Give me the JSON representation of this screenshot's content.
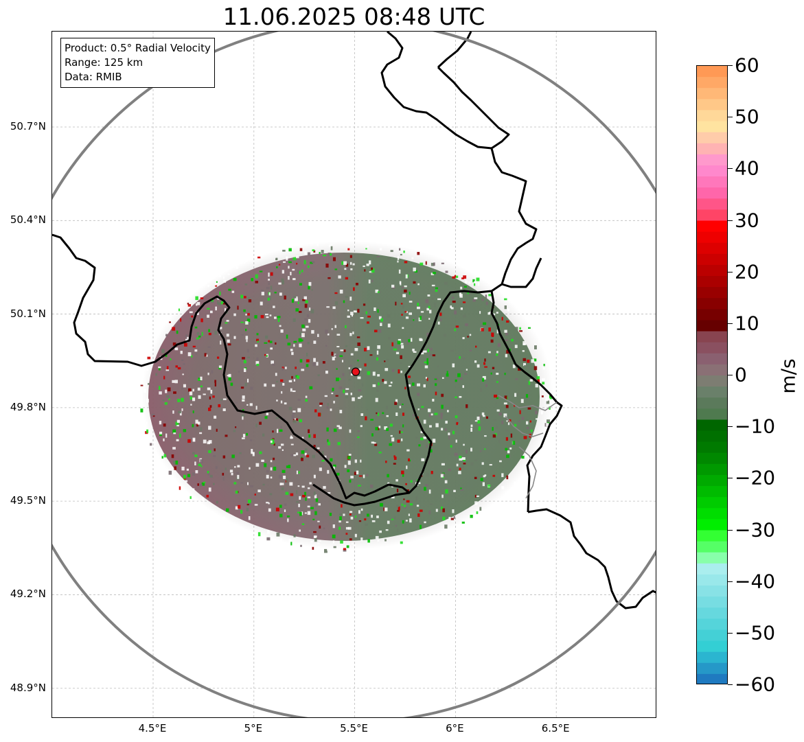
{
  "title": "11.06.2025 08:48 UTC",
  "info": {
    "product": "Product: 0.5° Radial Velocity",
    "range": "Range: 125 km",
    "source": "Data: RMIB"
  },
  "axes": {
    "latitude_ticks": [
      {
        "value": 50.7,
        "label": "50.7°N"
      },
      {
        "value": 50.4,
        "label": "50.4°N"
      },
      {
        "value": 50.1,
        "label": "50.1°N"
      },
      {
        "value": 49.8,
        "label": "49.8°N"
      },
      {
        "value": 49.5,
        "label": "49.5°N"
      },
      {
        "value": 49.2,
        "label": "49.2°N"
      },
      {
        "value": 48.9,
        "label": "48.9°N"
      }
    ],
    "longitude_ticks": [
      {
        "value": 4.5,
        "label": "4.5°E"
      },
      {
        "value": 5.0,
        "label": "5°E"
      },
      {
        "value": 5.5,
        "label": "5.5°E"
      },
      {
        "value": 6.0,
        "label": "6°E"
      },
      {
        "value": 6.5,
        "label": "6.5°E"
      }
    ],
    "lon_range": [
      4.0,
      7.0
    ],
    "lat_range": [
      48.8,
      51.0
    ]
  },
  "radar": {
    "site_lon": 5.505,
    "site_lat": 49.915,
    "range_km": 125,
    "site_color": "#e8121b"
  },
  "colorbar": {
    "unit": "m/s",
    "min": -60,
    "max": 60,
    "ticks": [
      {
        "value": 60,
        "label": "60"
      },
      {
        "value": 50,
        "label": "50"
      },
      {
        "value": 40,
        "label": "40"
      },
      {
        "value": 30,
        "label": "30"
      },
      {
        "value": 20,
        "label": "20"
      },
      {
        "value": 10,
        "label": "10"
      },
      {
        "value": 0,
        "label": "0"
      },
      {
        "value": -10,
        "label": "−10"
      },
      {
        "value": -20,
        "label": "−20"
      },
      {
        "value": -30,
        "label": "−30"
      },
      {
        "value": -40,
        "label": "−40"
      },
      {
        "value": -50,
        "label": "−50"
      },
      {
        "value": -60,
        "label": "−60"
      }
    ],
    "colors_top_to_bottom": [
      "#ff9955",
      "#ffa866",
      "#ffb877",
      "#ffc888",
      "#ffd899",
      "#ffe3a0",
      "#ffccaa",
      "#ffb3b3",
      "#ff99cc",
      "#ff88cc",
      "#ff77bb",
      "#ff66aa",
      "#ff5588",
      "#ff4466",
      "#ff0000",
      "#ee0000",
      "#dd0000",
      "#cc0000",
      "#bb0000",
      "#aa0000",
      "#990000",
      "#880000",
      "#770000",
      "#660000",
      "#884450",
      "#8a5060",
      "#8a6070",
      "#8a7075",
      "#7d7d72",
      "#6a806a",
      "#5b7a5b",
      "#4f7a4f",
      "#006600",
      "#007000",
      "#007a00",
      "#008800",
      "#009900",
      "#00aa00",
      "#00bb00",
      "#00cc00",
      "#00dd00",
      "#00ee00",
      "#33ff33",
      "#55ff66",
      "#88ffaa",
      "#aaeeee",
      "#99e8ea",
      "#88e2e6",
      "#77dde2",
      "#66d8de",
      "#55d4da",
      "#44d0d6",
      "#33cfd4",
      "#2bb5d0",
      "#2598c8",
      "#1f7ac0"
    ]
  }
}
